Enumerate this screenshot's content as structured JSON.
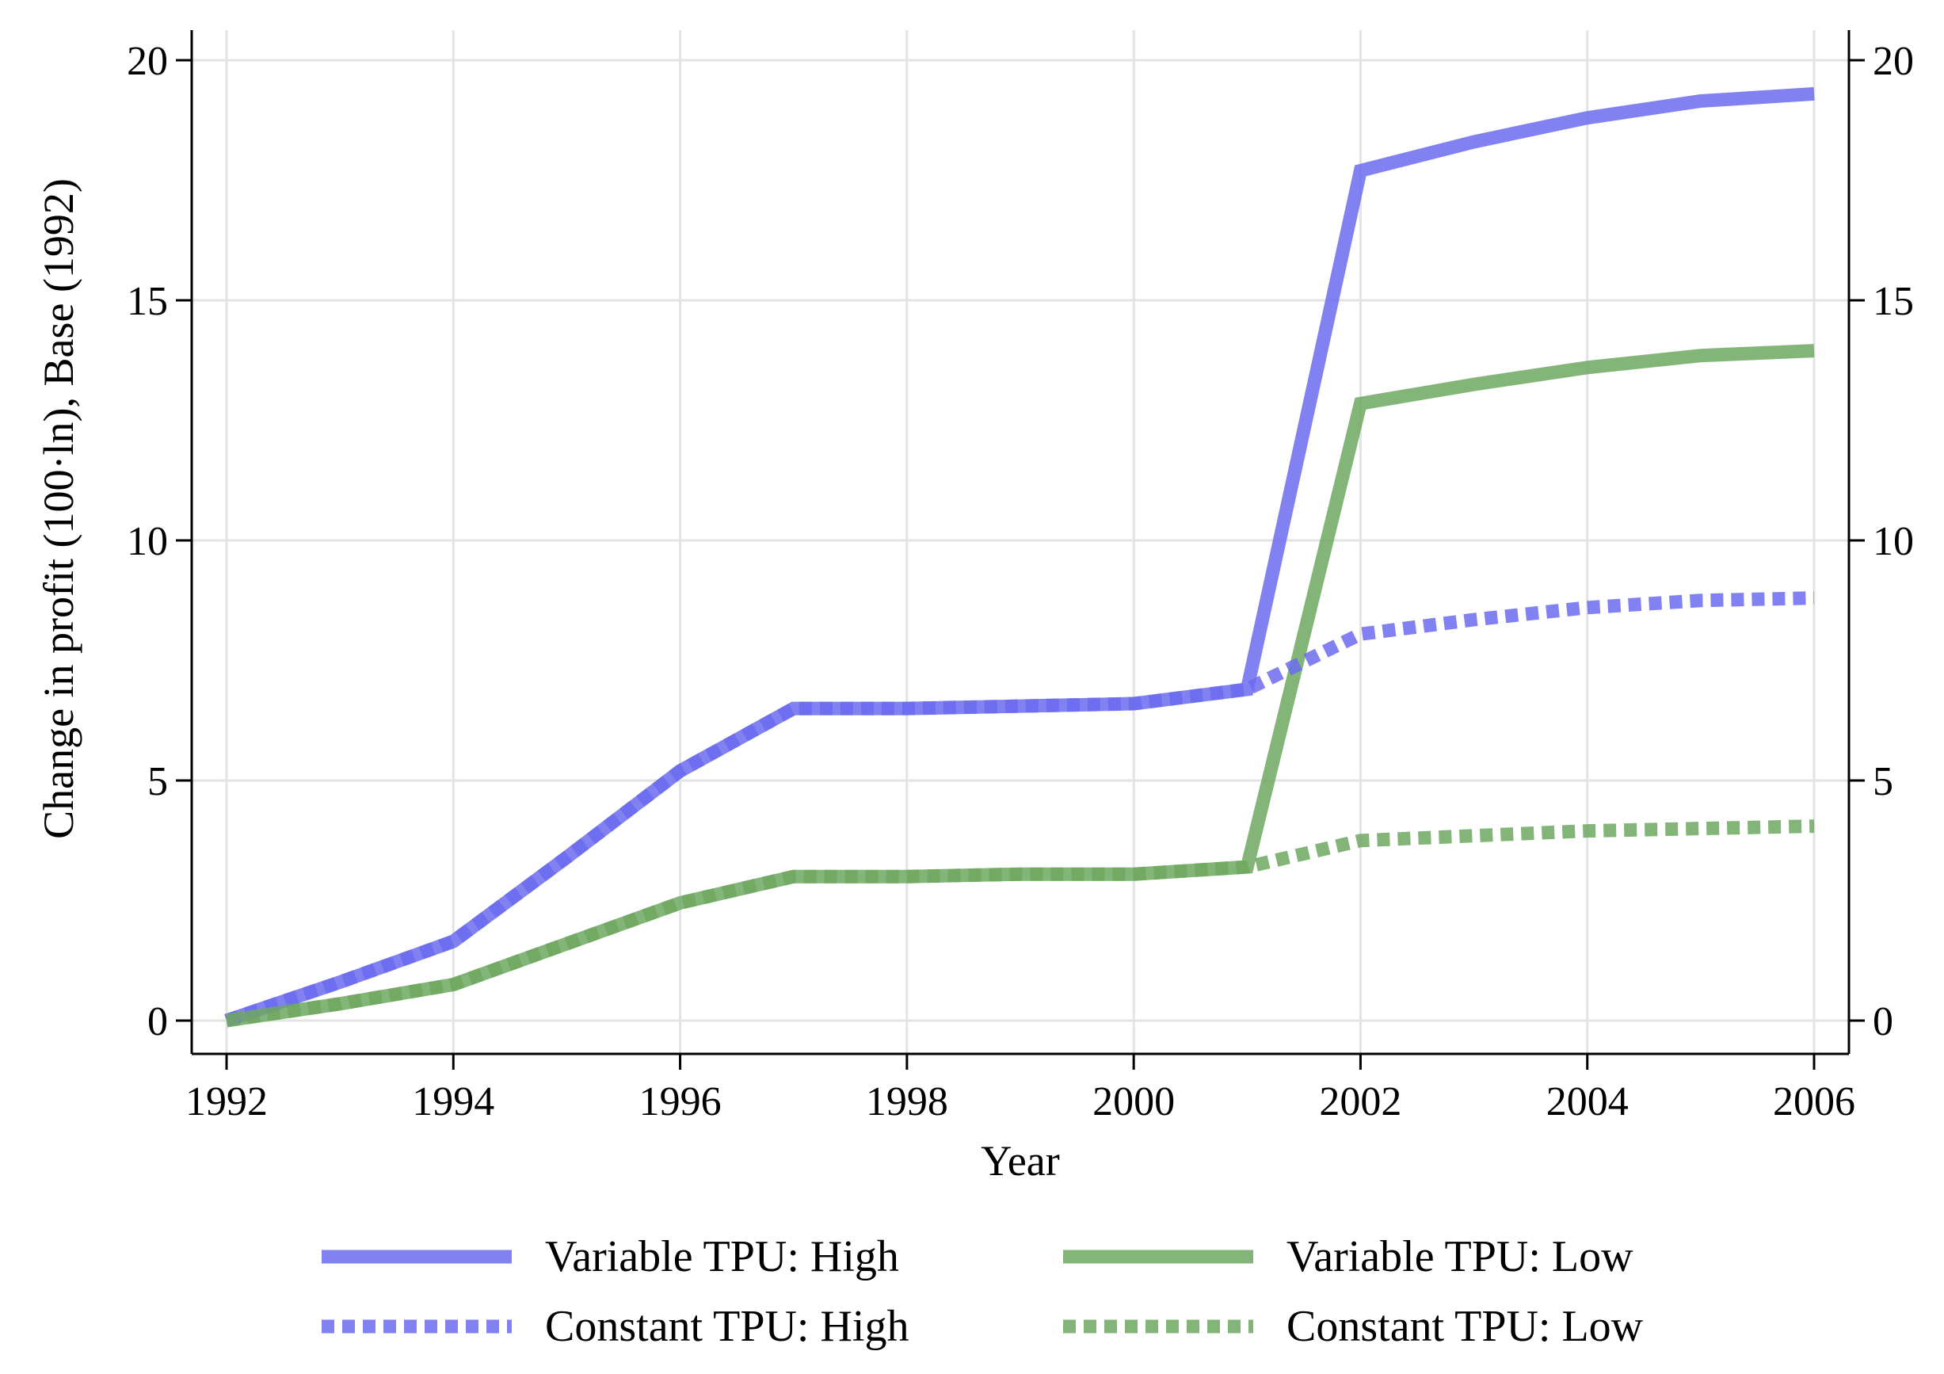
{
  "chart_data": {
    "type": "line",
    "title": "",
    "xlabel": "Year",
    "ylabel": "Change in profit (100·ln), Base (1992)",
    "xlim": [
      1992,
      2006
    ],
    "ylim": [
      0,
      20
    ],
    "x_ticks": [
      1992,
      1994,
      1996,
      1998,
      2000,
      2002,
      2004,
      2006
    ],
    "y_ticks": [
      0,
      5,
      10,
      15,
      20
    ],
    "secondary_y_axis": true,
    "grid": true,
    "legend_position": "bottom",
    "x": [
      1992,
      1993,
      1994,
      1995,
      1996,
      1997,
      1998,
      1999,
      2000,
      2001,
      2002,
      2003,
      2004,
      2005,
      2006
    ],
    "series": [
      {
        "name": "Variable TPU: High",
        "style": "solid",
        "color": "#6b6bf0",
        "values": [
          0,
          0.8,
          1.65,
          3.4,
          5.2,
          6.5,
          6.5,
          6.55,
          6.6,
          6.9,
          17.7,
          18.3,
          18.8,
          19.15,
          19.3
        ]
      },
      {
        "name": "Variable TPU: Low",
        "style": "solid",
        "color": "#6fa860",
        "values": [
          0,
          0.35,
          0.75,
          1.6,
          2.45,
          3.0,
          3.0,
          3.05,
          3.05,
          3.2,
          12.85,
          13.25,
          13.6,
          13.85,
          13.95
        ]
      },
      {
        "name": "Constant TPU: High",
        "style": "dotted",
        "color": "#6b6bf0",
        "values": [
          0,
          0.8,
          1.65,
          3.4,
          5.2,
          6.5,
          6.5,
          6.55,
          6.6,
          6.9,
          8.05,
          8.35,
          8.6,
          8.75,
          8.8
        ]
      },
      {
        "name": "Constant TPU: Low",
        "style": "dotted",
        "color": "#6fa860",
        "values": [
          0,
          0.35,
          0.75,
          1.6,
          2.45,
          3.0,
          3.0,
          3.05,
          3.05,
          3.2,
          3.75,
          3.85,
          3.95,
          4.0,
          4.05
        ]
      }
    ]
  }
}
